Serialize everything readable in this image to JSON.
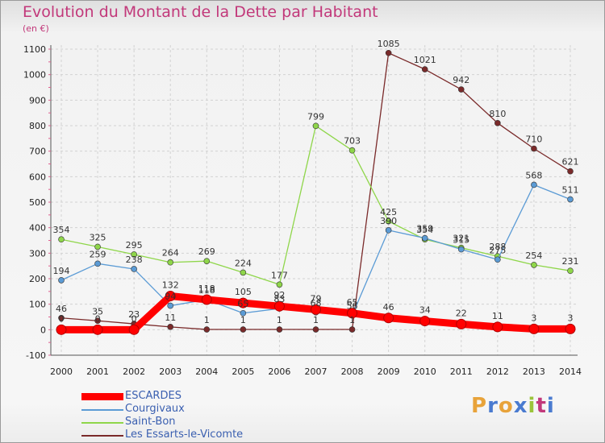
{
  "header": {
    "title": "Evolution du Montant de la Dette par Habitant",
    "subtitle": "(en €)"
  },
  "brand": {
    "letters": [
      "P",
      "r",
      "o",
      "x",
      "i",
      "t",
      "i"
    ],
    "colors": [
      "#e8a33a",
      "#4a7bd0",
      "#e8a33a",
      "#4a7bd0",
      "#9ac43a",
      "#c2387a",
      "#4a7bd0"
    ]
  },
  "chart_data": {
    "type": "line",
    "title": "Evolution du Montant de la Dette par Habitant",
    "subtitle": "(en €)",
    "xlabel": "",
    "ylabel": "",
    "x": [
      "2000",
      "2001",
      "2002",
      "2003",
      "2004",
      "2005",
      "2006",
      "2007",
      "2008",
      "2009",
      "2010",
      "2011",
      "2012",
      "2013",
      "2014"
    ],
    "ylim": [
      -100,
      1100
    ],
    "yticks": [
      -100,
      0,
      100,
      200,
      300,
      400,
      500,
      600,
      700,
      800,
      900,
      1000,
      1100
    ],
    "legend_position": "bottom",
    "series": [
      {
        "name": "Les Essarts-le-Vicomte",
        "color": "#7a2a2a",
        "values": [
          46,
          35,
          23,
          11,
          1,
          1,
          1,
          1,
          1,
          1085,
          1021,
          942,
          810,
          710,
          621
        ]
      },
      {
        "name": "Saint-Bon",
        "color": "#8fd64a",
        "values": [
          354,
          325,
          295,
          264,
          269,
          224,
          177,
          799,
          703,
          425,
          354,
          321,
          288,
          254,
          231
        ]
      },
      {
        "name": "Courgivaux",
        "color": "#5b9bd5",
        "values": [
          194,
          259,
          238,
          94,
          118,
          65,
          83,
          68,
          56,
          390,
          359,
          315,
          275,
          568,
          511
        ]
      },
      {
        "name": "ESCARDES",
        "color": "#ff0000",
        "values": [
          0,
          0,
          0,
          132,
          118,
          105,
          92,
          79,
          65,
          46,
          34,
          22,
          11,
          3,
          3
        ]
      }
    ],
    "legend_order": [
      "ESCARDES",
      "Courgivaux",
      "Saint-Bon",
      "Les Essarts-le-Vicomte"
    ]
  }
}
